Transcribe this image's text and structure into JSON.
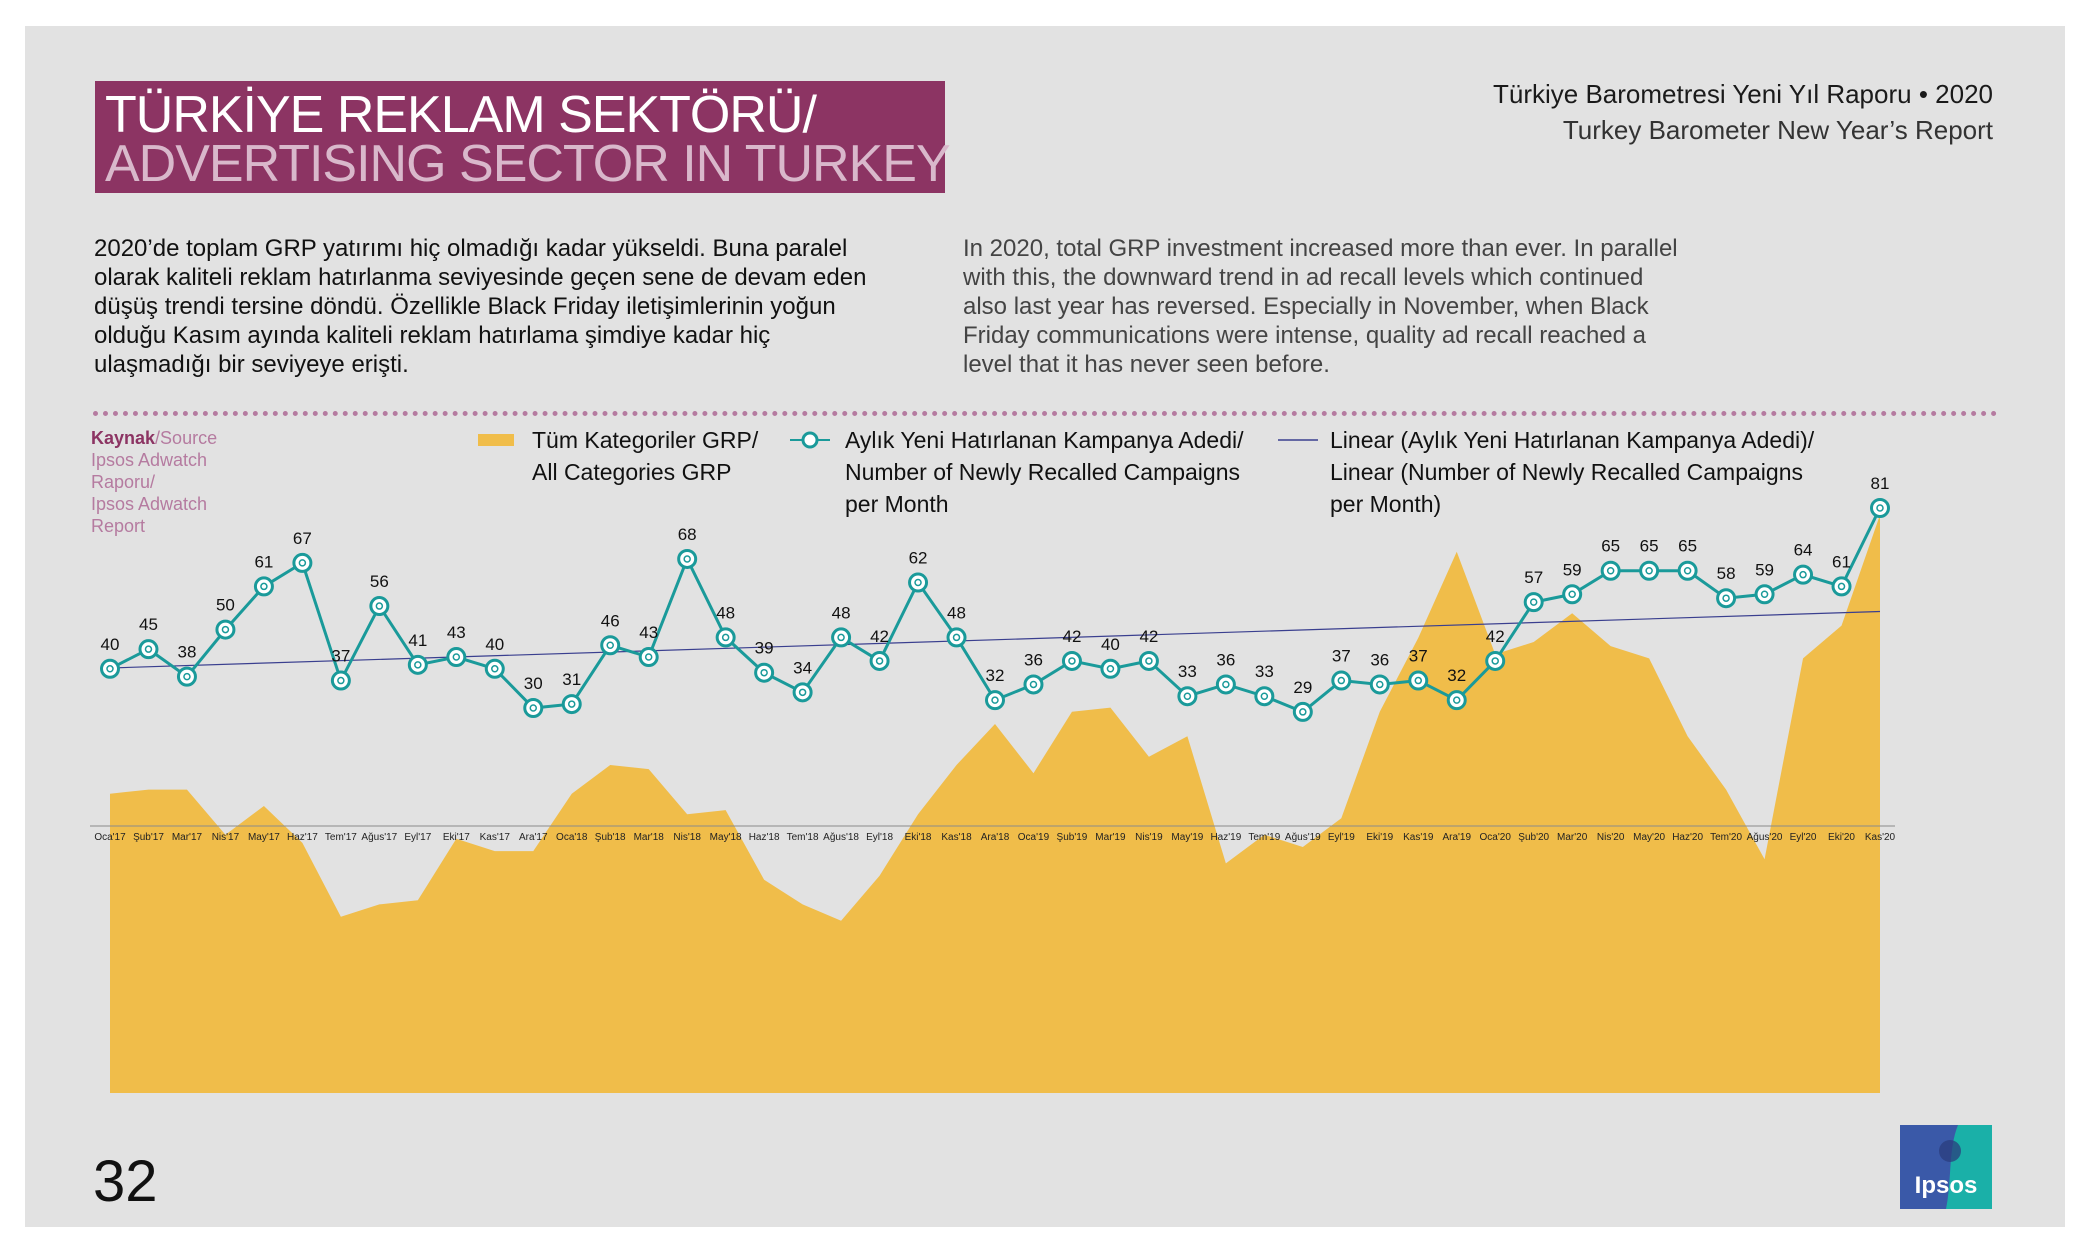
{
  "header": {
    "title_line1": "TÜRKİYE REKLAM SEKTÖRÜ/",
    "title_line2": "ADVERTISING SECTOR IN TURKEY",
    "report_tr": "Türkiye Barometresi Yeni Yıl Raporu • 2020",
    "report_en": "Turkey Barometer New Year’s Report"
  },
  "body": {
    "text_tr": "2020’de toplam GRP yatırımı hiç olmadığı kadar yükseldi. Buna paralel olarak kaliteli reklam hatırlanma seviyesinde geçen sene de devam eden düşüş trendi tersine döndü. Özellikle Black Friday iletişimlerinin yoğun olduğu Kasım ayında kaliteli reklam hatırlama şimdiye kadar hiç ulaşmadığı bir seviyeye erişti.",
    "text_en": "In 2020, total GRP investment increased more than ever. In parallel with this, the downward trend in ad recall levels which continued also last year has reversed. Especially in November, when Black Friday communications were intense, quality ad recall reached a level that it has never seen before."
  },
  "source": {
    "label": "Kaynak",
    "label_en": "/Source",
    "lines": [
      "Ipsos Adwatch",
      "Raporu/",
      "Ipsos Adwatch",
      "Report"
    ]
  },
  "page_number": "32",
  "logo_text": "Ipsos",
  "colors": {
    "grp": "#f0bd4a",
    "line": "#1a9a9a",
    "trend": "#3a3f8f",
    "title_bg": "#8c3463",
    "dots": "#b57ba0"
  },
  "chart_data": {
    "type": "line",
    "categories": [
      "Oca'17",
      "Şub'17",
      "Mar'17",
      "Nis'17",
      "May'17",
      "Haz'17",
      "Tem'17",
      "Ağus'17",
      "Eyl'17",
      "Eki'17",
      "Kas'17",
      "Ara'17",
      "Oca'18",
      "Şub'18",
      "Mar'18",
      "Nis'18",
      "May'18",
      "Haz'18",
      "Tem'18",
      "Ağus'18",
      "Eyl'18",
      "Eki'18",
      "Kas'18",
      "Ara'18",
      "Oca'19",
      "Şub'19",
      "Mar'19",
      "Nis'19",
      "May'19",
      "Haz'19",
      "Tem'19",
      "Ağus'19",
      "Eyl'19",
      "Eki'19",
      "Kas'19",
      "Ara'19",
      "Oca'20",
      "Şub'20",
      "Mar'20",
      "Nis'20",
      "May'20",
      "Haz'20",
      "Tem'20",
      "Ağus'20",
      "Eyl'20",
      "Eki'20",
      "Kas'20"
    ],
    "series": [
      {
        "name": "Aylık Yeni Hatırlanan Kampanya Adedi/ Number of Newly Recalled Campaigns per Month",
        "type": "line",
        "values": [
          40,
          45,
          38,
          50,
          61,
          67,
          37,
          56,
          41,
          43,
          40,
          30,
          31,
          46,
          43,
          68,
          48,
          39,
          34,
          48,
          42,
          62,
          48,
          32,
          36,
          42,
          40,
          42,
          33,
          36,
          33,
          29,
          37,
          36,
          37,
          32,
          42,
          57,
          59,
          65,
          65,
          65,
          58,
          59,
          64,
          61,
          81
        ]
      },
      {
        "name": "Tüm Kategoriler GRP/ All Categories GRP",
        "type": "area",
        "relative_values": [
          0.73,
          0.74,
          0.74,
          0.63,
          0.7,
          0.61,
          0.43,
          0.46,
          0.47,
          0.62,
          0.59,
          0.59,
          0.73,
          0.8,
          0.79,
          0.68,
          0.69,
          0.52,
          0.46,
          0.42,
          0.53,
          0.68,
          0.8,
          0.9,
          0.78,
          0.93,
          0.94,
          0.82,
          0.87,
          0.56,
          0.63,
          0.6,
          0.67,
          0.93,
          1.11,
          1.32,
          1.07,
          1.1,
          1.17,
          1.09,
          1.06,
          0.87,
          0.74,
          0.57,
          1.06,
          1.14,
          1.41
        ]
      },
      {
        "name": "Linear (Aylık Yeni Hatırlanan Kampanya Adedi)/ Linear (Number of Newly Recalled Campaigns per Month)",
        "type": "trendline",
        "start": 40.2,
        "end": 54.6
      }
    ],
    "legend": [
      {
        "line1": "Tüm Kategoriler GRP/",
        "line2": "All Categories GRP",
        "line3": ""
      },
      {
        "line1": "Aylık Yeni Hatırlanan Kampanya Adedi/",
        "line2": "Number of Newly Recalled Campaigns",
        "line3": "per Month"
      },
      {
        "line1": "Linear (Aylık Yeni Hatırlanan Kampanya Adedi)/",
        "line2": "Linear (Number of Newly Recalled Campaigns",
        "line3": "per Month)"
      }
    ]
  }
}
